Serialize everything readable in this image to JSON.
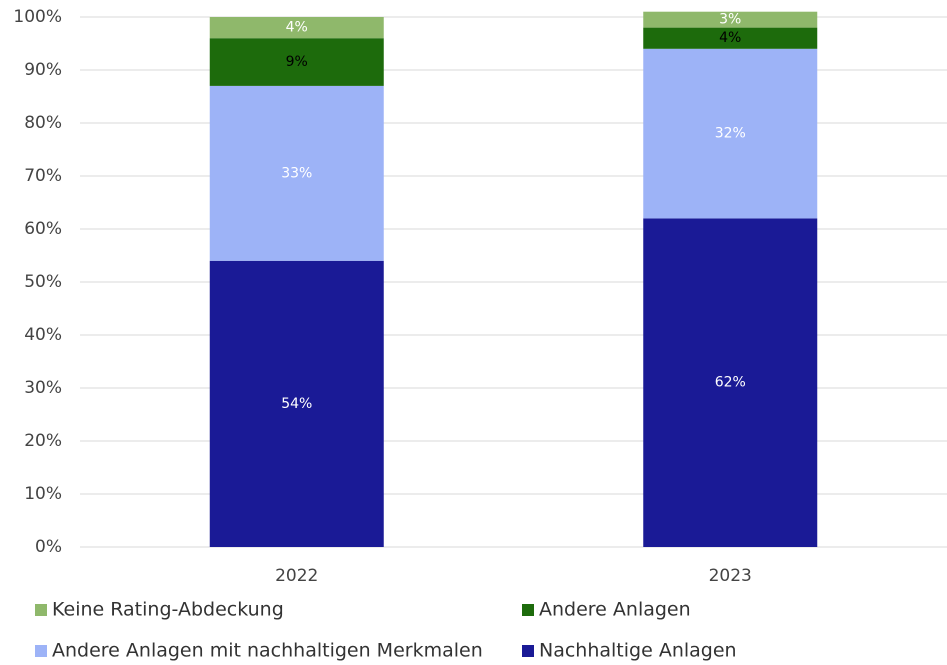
{
  "chart_data": {
    "type": "stacked-bar",
    "categories": [
      "2022",
      "2023"
    ],
    "series": [
      {
        "name": "Nachhaltige Anlagen",
        "color": "#1a1a96",
        "label_color": "#ffffff",
        "values": [
          54,
          62
        ],
        "value_labels": [
          "54%",
          "62%"
        ]
      },
      {
        "name": "Andere Anlagen mit nachhaltigen Merkmalen",
        "color": "#9db3f7",
        "label_color": "#ffffff",
        "values": [
          33,
          32
        ],
        "value_labels": [
          "33%",
          "32%"
        ]
      },
      {
        "name": "Andere Anlagen",
        "color": "#1d6b0c",
        "label_color": "#000000",
        "values": [
          9,
          4
        ],
        "value_labels": [
          "9%",
          "4%"
        ]
      },
      {
        "name": "Keine Rating-Abdeckung",
        "color": "#8fb86b",
        "label_color": "#ffffff",
        "values": [
          4,
          3
        ],
        "value_labels": [
          "4%",
          "3%"
        ]
      }
    ],
    "ylim": [
      0,
      100
    ],
    "yticks": [
      {
        "value": 0,
        "label": "0%"
      },
      {
        "value": 10,
        "label": "10%"
      },
      {
        "value": 20,
        "label": "20%"
      },
      {
        "value": 30,
        "label": "30%"
      },
      {
        "value": 40,
        "label": "40%"
      },
      {
        "value": 50,
        "label": "50%"
      },
      {
        "value": 60,
        "label": "60%"
      },
      {
        "value": 70,
        "label": "70%"
      },
      {
        "value": 80,
        "label": "80%"
      },
      {
        "value": 90,
        "label": "90%"
      },
      {
        "value": 100,
        "label": "100%"
      }
    ],
    "grid": true
  }
}
